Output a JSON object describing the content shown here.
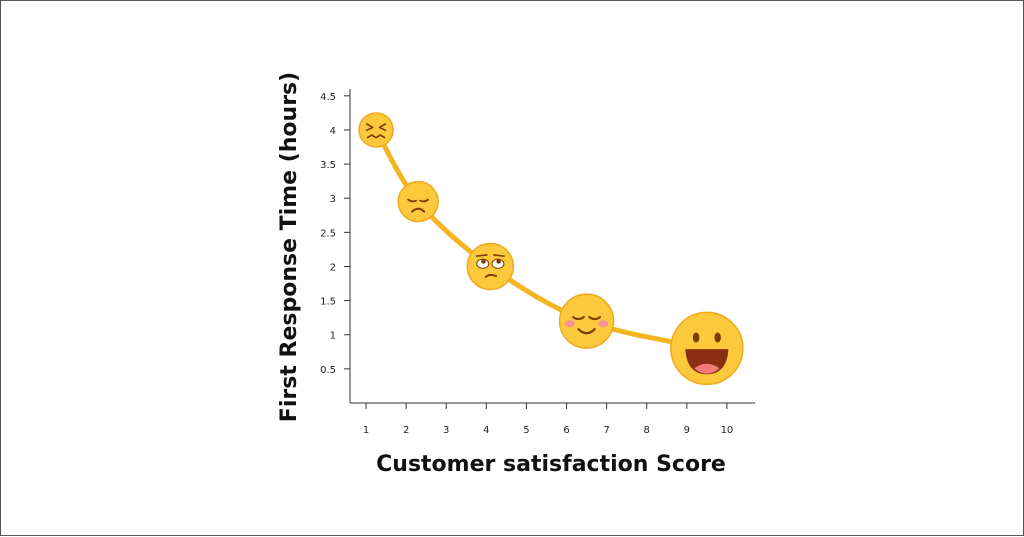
{
  "chart_data": {
    "type": "line",
    "xlabel": "Customer satisfaction Score",
    "ylabel": "First Response Time (hours)",
    "x_ticks": [
      "1",
      "2",
      "3",
      "4",
      "5",
      "6",
      "7",
      "8",
      "9",
      "10"
    ],
    "y_ticks": [
      "0.5",
      "1",
      "1.5",
      "2",
      "2.5",
      "3",
      "3.5",
      "4",
      "4.5"
    ],
    "xlim": [
      0.6,
      10.7
    ],
    "ylim": [
      0,
      4.6
    ],
    "grid": false,
    "series": [
      {
        "points": [
          {
            "x": 1.25,
            "y": 4.0,
            "face": "squinting-face-icon"
          },
          {
            "x": 2.3,
            "y": 2.95,
            "face": "sad-face-icon"
          },
          {
            "x": 4.1,
            "y": 2.0,
            "face": "eye-roll-face-icon"
          },
          {
            "x": 6.5,
            "y": 1.2,
            "face": "smiling-face-icon"
          },
          {
            "x": 9.5,
            "y": 0.8,
            "face": "grinning-face-icon"
          }
        ]
      }
    ],
    "colors": {
      "line": "#f5b520",
      "face": "#fbc93b",
      "face_border": "#f2a81d",
      "feature": "#7a3e00",
      "mouth": "#8a2e14",
      "tongue": "#f27a7a",
      "blush": "#f7929a"
    }
  }
}
